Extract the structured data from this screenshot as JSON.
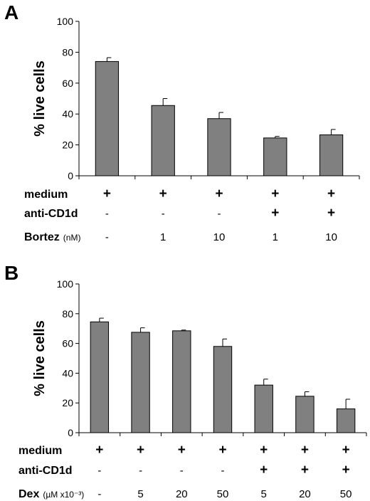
{
  "chart_data": [
    {
      "type": "bar",
      "panel_label": "A",
      "ylabel": "% live cells",
      "ylim": [
        0,
        100
      ],
      "yticks": [
        "0",
        "20",
        "40",
        "60",
        "80",
        "100"
      ],
      "grid": false,
      "bar_color": "#808080",
      "values": [
        74,
        45.5,
        37,
        24.5,
        26.5
      ],
      "errors": [
        2.5,
        4.5,
        4,
        1,
        3.5
      ],
      "rows": [
        {
          "label": "medium",
          "unit": "",
          "cells": [
            "+",
            "+",
            "+",
            "+",
            "+"
          ]
        },
        {
          "label": "anti-CD1d",
          "unit": "",
          "cells": [
            "-",
            "-",
            "-",
            "+",
            "+"
          ]
        },
        {
          "label": "Bortez",
          "unit": "(nM)",
          "cells": [
            "-",
            "1",
            "10",
            "1",
            "10"
          ]
        }
      ]
    },
    {
      "type": "bar",
      "panel_label": "B",
      "ylabel": "% live cells",
      "ylim": [
        0,
        100
      ],
      "yticks": [
        "0",
        "20",
        "40",
        "60",
        "80",
        "100"
      ],
      "grid": false,
      "bar_color": "#808080",
      "values": [
        74.5,
        67.5,
        68.5,
        58,
        32,
        24.5,
        16
      ],
      "errors": [
        2.5,
        3,
        0.5,
        5,
        4,
        3,
        6.5
      ],
      "rows": [
        {
          "label": "medium",
          "unit": "",
          "cells": [
            "+",
            "+",
            "+",
            "+",
            "+",
            "+",
            "+"
          ]
        },
        {
          "label": "anti-CD1d",
          "unit": "",
          "cells": [
            "-",
            "-",
            "-",
            "-",
            "+",
            "+",
            "+"
          ]
        },
        {
          "label": "Dex",
          "unit": "(µM x10⁻³)",
          "cells": [
            "-",
            "5",
            "20",
            "50",
            "5",
            "20",
            "50"
          ]
        }
      ]
    }
  ]
}
